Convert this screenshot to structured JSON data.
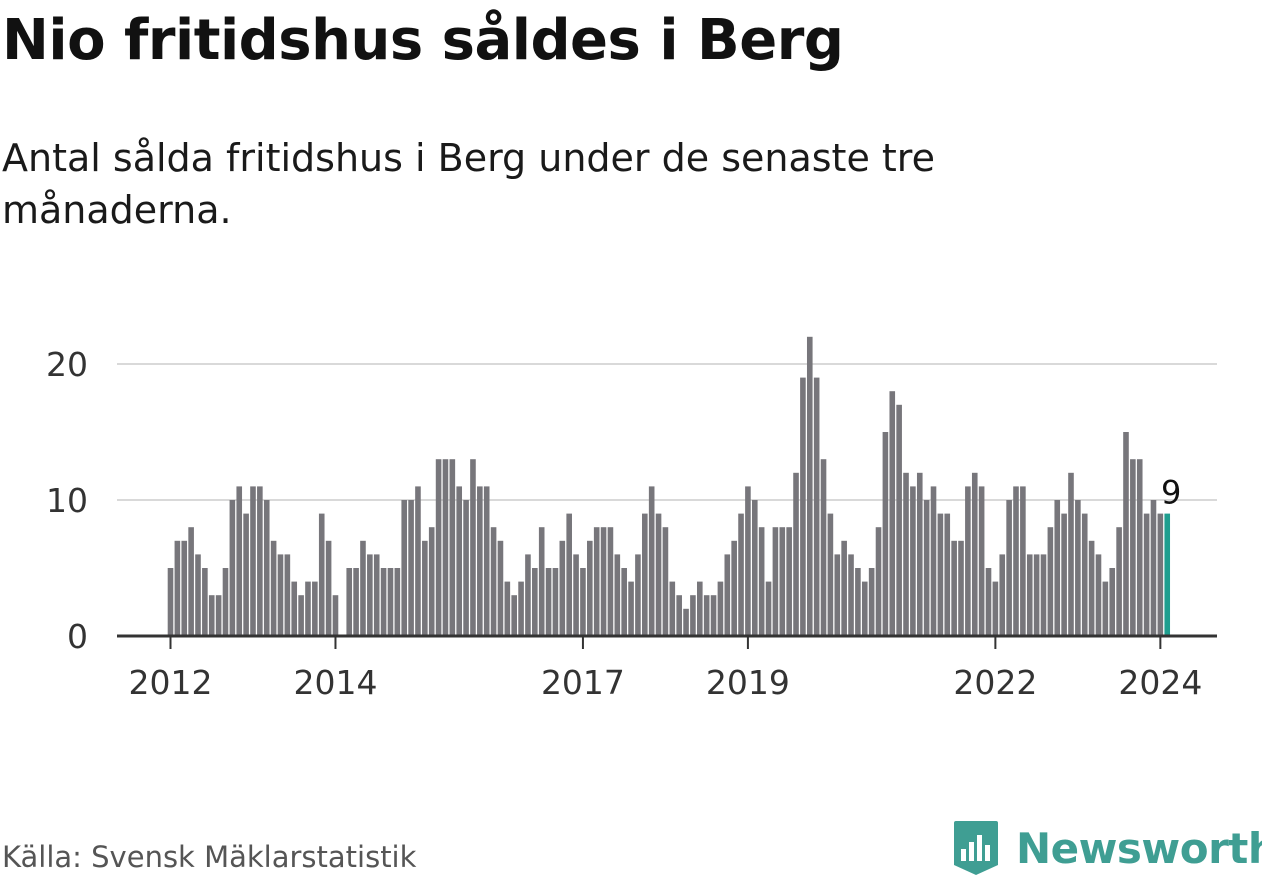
{
  "title": "Nio fritidshus såldes i Berg",
  "subtitle": "Antal sålda fritidshus i Berg under de senaste tre månaderna.",
  "source": "Källa: Svensk Mäklarstatistik",
  "brand": {
    "name": "Newsworthy",
    "logo_icon": "newsworthy-logo-icon"
  },
  "colors": {
    "bar": "#77767b",
    "highlight": "#1f9e8f",
    "grid": "#d9d9d9",
    "axis": "#333333"
  },
  "chart_data": {
    "type": "bar",
    "title": "Nio fritidshus såldes i Berg",
    "xlabel": "",
    "ylabel": "",
    "ylim": [
      0,
      22
    ],
    "y_ticks": [
      0,
      10,
      20
    ],
    "grid": true,
    "start": {
      "year": 2012,
      "month": 1
    },
    "x_tick_labels": [
      "2012",
      "2014",
      "2017",
      "2019",
      "2022",
      "2024"
    ],
    "values": [
      5,
      7,
      7,
      8,
      6,
      5,
      3,
      3,
      5,
      10,
      11,
      9,
      11,
      11,
      10,
      7,
      6,
      6,
      4,
      3,
      4,
      4,
      9,
      7,
      3,
      0,
      5,
      5,
      7,
      6,
      6,
      5,
      5,
      5,
      10,
      10,
      11,
      7,
      8,
      13,
      13,
      13,
      11,
      10,
      13,
      11,
      11,
      8,
      7,
      4,
      3,
      4,
      6,
      5,
      8,
      5,
      5,
      7,
      9,
      6,
      5,
      7,
      8,
      8,
      8,
      6,
      5,
      4,
      6,
      9,
      11,
      9,
      8,
      4,
      3,
      2,
      3,
      4,
      3,
      3,
      4,
      6,
      7,
      9,
      11,
      10,
      8,
      4,
      8,
      8,
      8,
      12,
      19,
      22,
      19,
      13,
      9,
      6,
      7,
      6,
      5,
      4,
      5,
      8,
      15,
      18,
      17,
      12,
      11,
      12,
      10,
      11,
      9,
      9,
      7,
      7,
      11,
      12,
      11,
      5,
      4,
      6,
      10,
      11,
      11,
      6,
      6,
      6,
      8,
      10,
      9,
      12,
      10,
      9,
      7,
      6,
      4,
      5,
      8,
      15,
      13,
      13,
      9,
      10,
      9,
      9
    ],
    "highlight_last": true,
    "last_value_label": "9"
  }
}
